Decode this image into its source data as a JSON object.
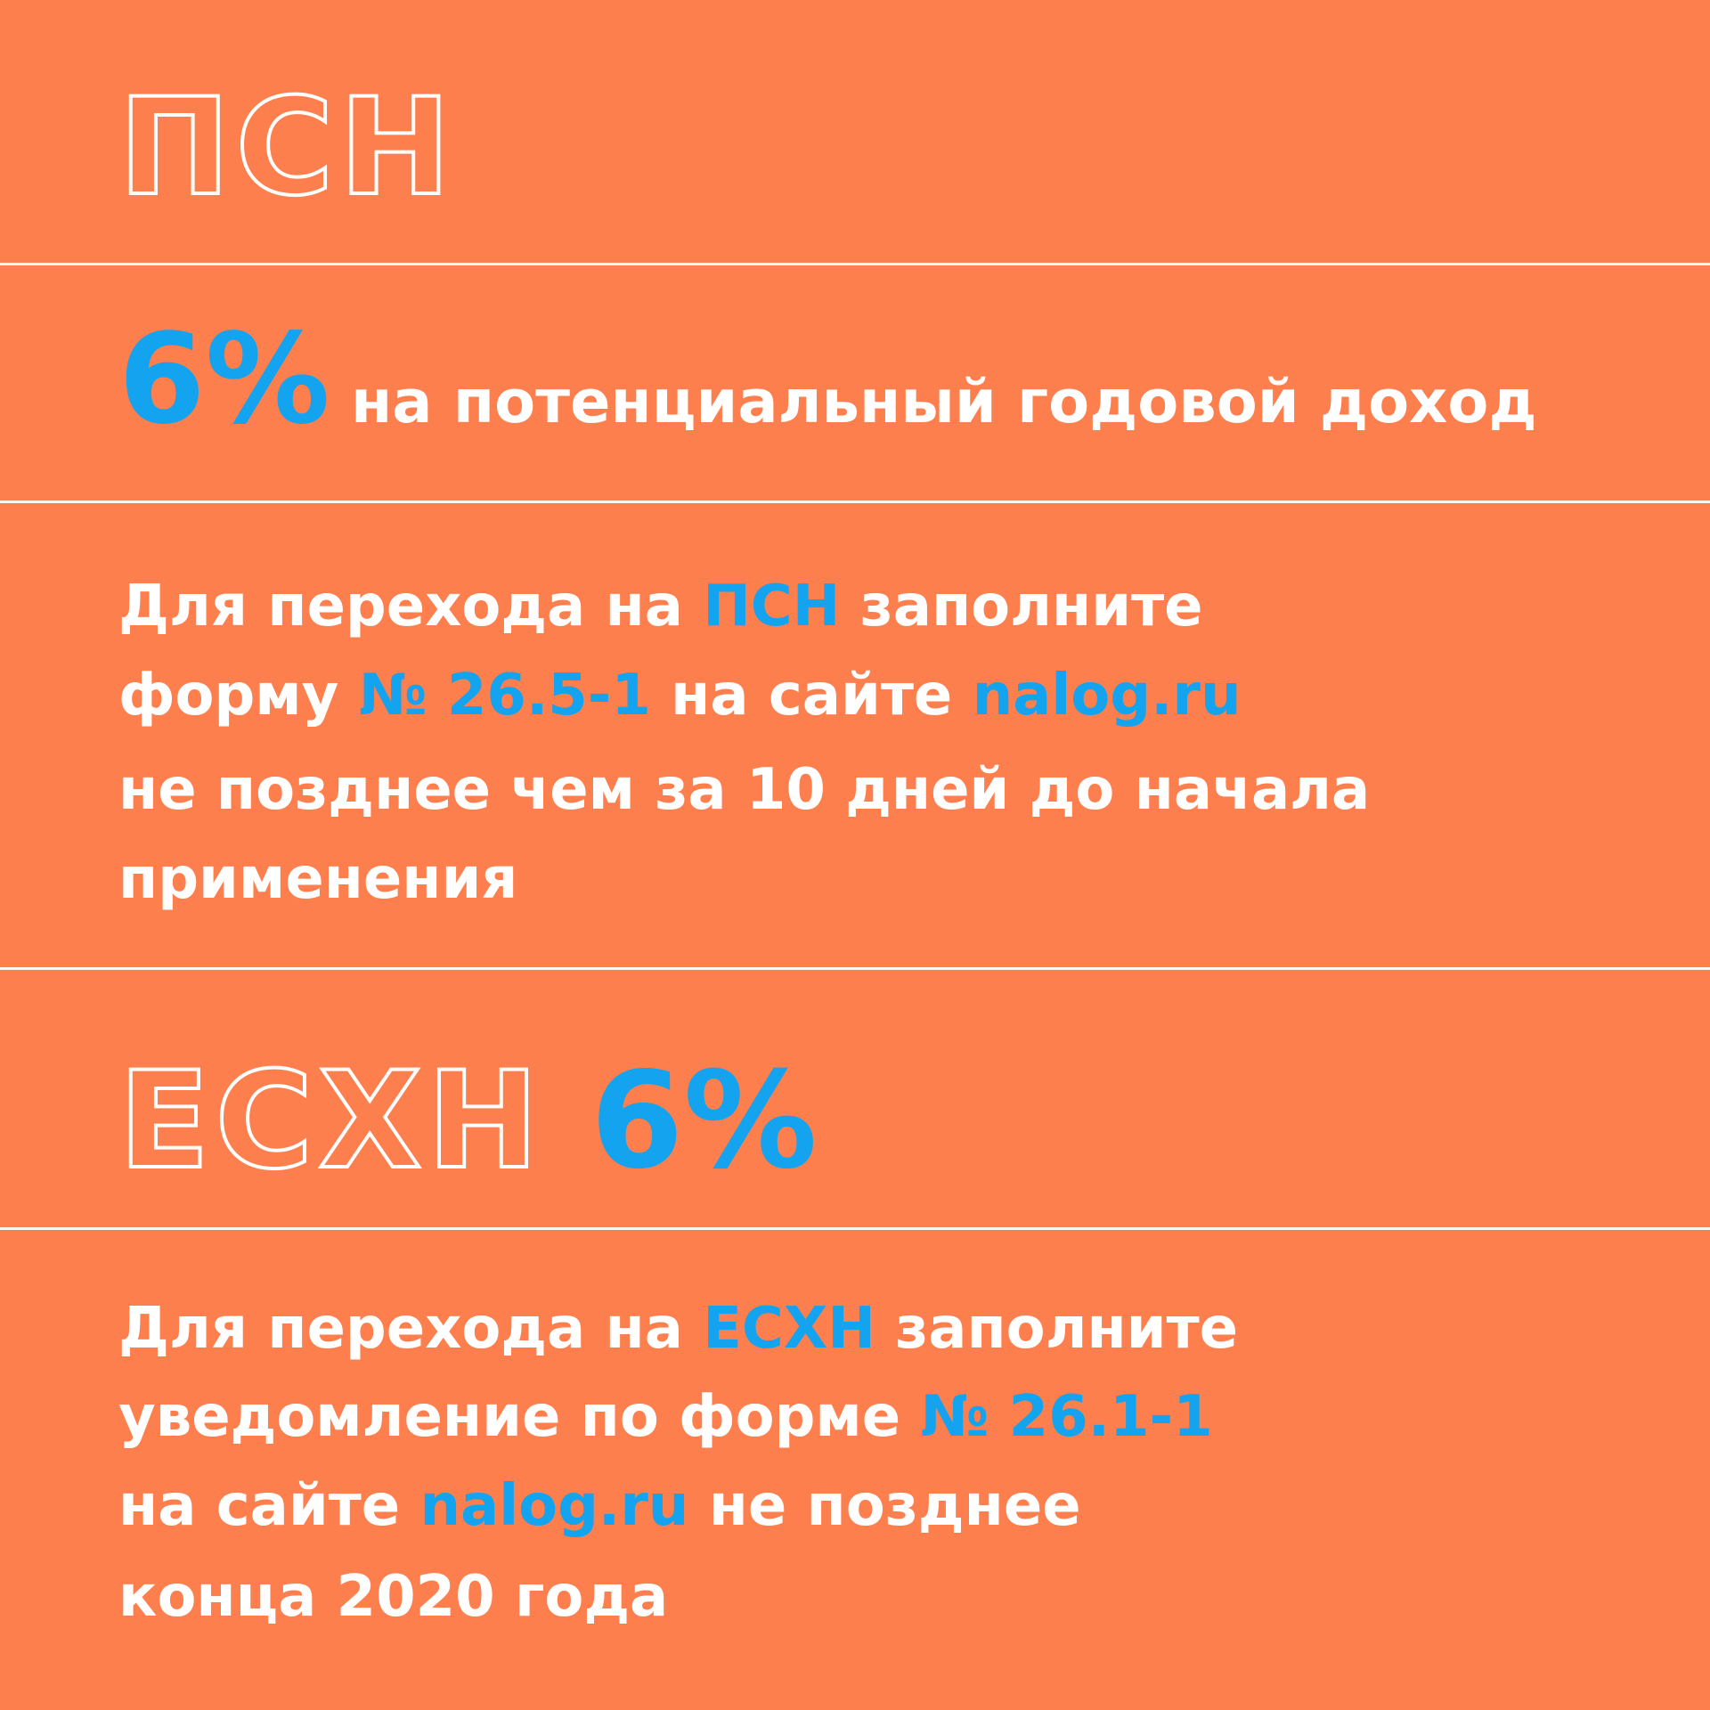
{
  "background": "#fe7f4e",
  "text_color": "#ffffff",
  "accent_color": "#14a3ef",
  "blocks": [
    {
      "kind": "heading",
      "lines": [
        [
          {
            "text": "ПСН",
            "style": "outline"
          }
        ]
      ]
    },
    {
      "kind": "lead",
      "lines": [
        [
          {
            "text": "6%",
            "style": "accent"
          },
          {
            "text": " на потенциальный годовой доход",
            "style": "plain"
          }
        ]
      ]
    },
    {
      "kind": "paragraph",
      "lines": [
        [
          {
            "text": "Для перехода на ",
            "style": "plain"
          },
          {
            "text": "ПСН",
            "style": "accent"
          },
          {
            "text": " заполните",
            "style": "plain"
          }
        ],
        [
          {
            "text": "форму ",
            "style": "plain"
          },
          {
            "text": "№ 26.5-1",
            "style": "accent"
          },
          {
            "text": " на сайте ",
            "style": "plain"
          },
          {
            "text": "nalog.ru",
            "style": "accent"
          }
        ],
        [
          {
            "text": "не позднее чем за 10 дней до начала",
            "style": "plain"
          }
        ],
        [
          {
            "text": "применения",
            "style": "plain"
          }
        ]
      ]
    },
    {
      "kind": "heading",
      "lines": [
        [
          {
            "text": "ЕСХН",
            "style": "outline"
          },
          {
            "text": " ",
            "style": "plain"
          },
          {
            "text": "6%",
            "style": "accent"
          }
        ]
      ]
    },
    {
      "kind": "paragraph",
      "lines": [
        [
          {
            "text": "Для перехода на ",
            "style": "plain"
          },
          {
            "text": "ЕСХН",
            "style": "accent"
          },
          {
            "text": " заполните",
            "style": "plain"
          }
        ],
        [
          {
            "text": "уведомление по форме ",
            "style": "plain"
          },
          {
            "text": "№ 26.1-1",
            "style": "accent"
          }
        ],
        [
          {
            "text": "на сайте ",
            "style": "plain"
          },
          {
            "text": "nalog.ru",
            "style": "accent"
          },
          {
            "text": " не позднее",
            "style": "plain"
          }
        ],
        [
          {
            "text": "конца 2020 года",
            "style": "plain"
          }
        ]
      ]
    }
  ]
}
